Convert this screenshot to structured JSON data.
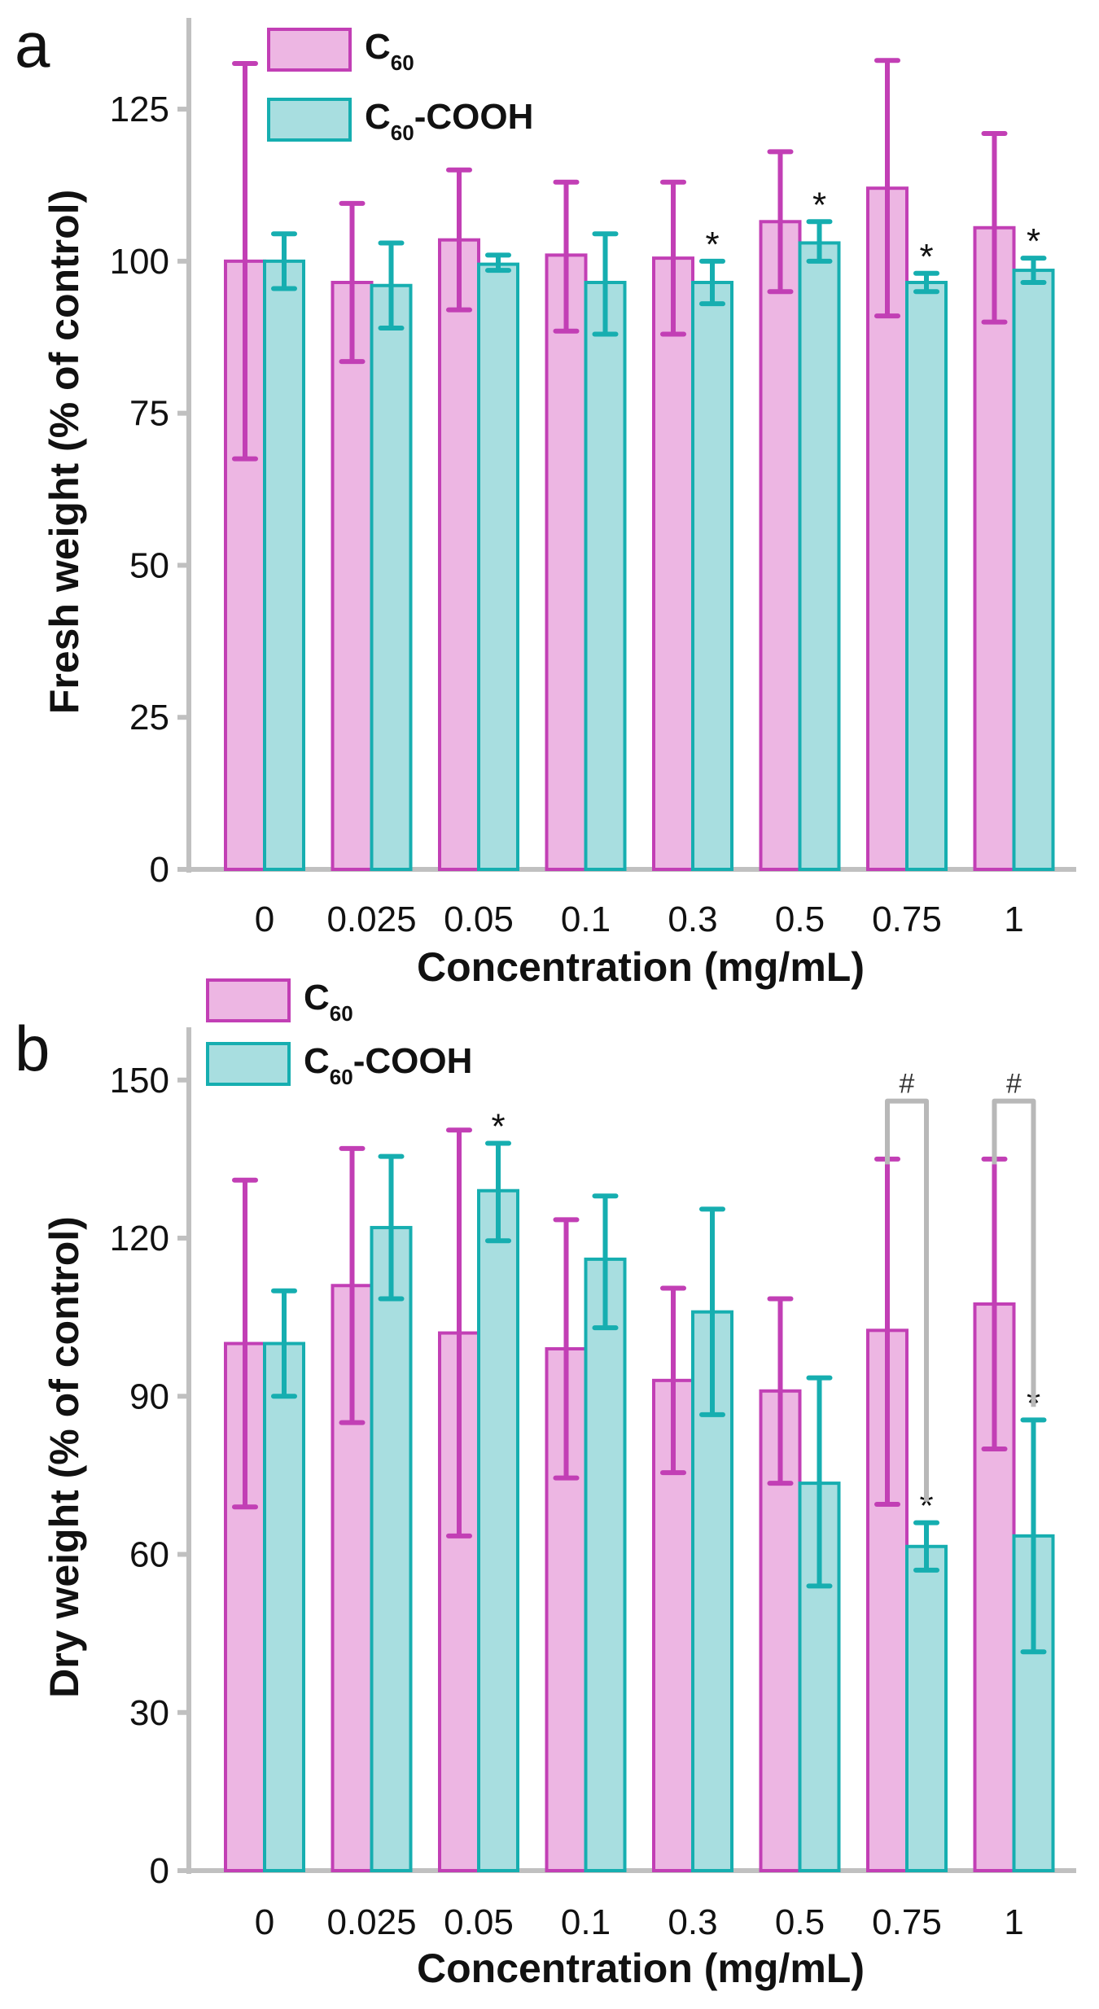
{
  "colors": {
    "c60_fill": "#EDB6E3",
    "c60_stroke": "#C23FB5",
    "cooh_fill": "#A8DEE0",
    "cooh_stroke": "#16AEB0",
    "axis": "#C0C0C0",
    "bracket": "#B8B8B8"
  },
  "chart_data": [
    {
      "panel": "a",
      "type": "bar",
      "xlabel": "Concentration (mg/mL)",
      "ylabel": "Fresh weight (% of control)",
      "ylim": [
        0,
        140
      ],
      "yticks": [
        0,
        25,
        50,
        75,
        100,
        125
      ],
      "categories": [
        "0",
        "0.025",
        "0.05",
        "0.1",
        "0.3",
        "0.5",
        "0.75",
        "1"
      ],
      "legend": [
        {
          "base": "C",
          "sub": "60",
          "suffix": ""
        },
        {
          "base": "C",
          "sub": "60",
          "suffix": "-COOH"
        }
      ],
      "legend_position": "top-left",
      "series": [
        {
          "name": "C60",
          "values": [
            100,
            96.5,
            103.5,
            101,
            100.5,
            106.5,
            112,
            105.5
          ],
          "err_low": [
            67.5,
            83.5,
            92,
            88.5,
            88,
            95,
            91,
            90
          ],
          "err_high": [
            132.5,
            109.5,
            115,
            113,
            113,
            118,
            133,
            121
          ]
        },
        {
          "name": "C60-COOH",
          "values": [
            100,
            96,
            99.5,
            96.5,
            96.5,
            103,
            96.5,
            98.5
          ],
          "err_low": [
            95.5,
            89,
            98.5,
            88,
            93,
            100,
            95,
            96.5
          ],
          "err_high": [
            104.5,
            103,
            101,
            104.5,
            100,
            106.5,
            98,
            100.5
          ],
          "stars": [
            "",
            "",
            "",
            "",
            "*",
            "*",
            "*",
            "*"
          ]
        }
      ],
      "brackets": []
    },
    {
      "panel": "b",
      "type": "bar",
      "xlabel": "Concentration (mg/mL)",
      "ylabel": "Dry weight (% of control)",
      "ylim": [
        0,
        160
      ],
      "yticks": [
        0,
        30,
        60,
        90,
        120,
        150
      ],
      "categories": [
        "0",
        "0.025",
        "0.05",
        "0.1",
        "0.3",
        "0.5",
        "0.75",
        "1"
      ],
      "legend": [
        {
          "base": "C",
          "sub": "60",
          "suffix": ""
        },
        {
          "base": "C",
          "sub": "60",
          "suffix": "-COOH"
        }
      ],
      "legend_position": "top-left",
      "series": [
        {
          "name": "C60",
          "values": [
            100,
            111,
            102,
            99,
            93,
            91,
            102.5,
            107.5
          ],
          "err_low": [
            69,
            85,
            63.5,
            74.5,
            75.5,
            73.5,
            69.5,
            80
          ],
          "err_high": [
            131,
            137,
            140.5,
            123.5,
            110.5,
            108.5,
            135,
            135
          ]
        },
        {
          "name": "C60-COOH",
          "values": [
            100,
            122,
            129,
            116,
            106,
            73.5,
            61.5,
            63.5
          ],
          "err_low": [
            90,
            108.5,
            119.5,
            103,
            86.5,
            54,
            57,
            41.5
          ],
          "err_high": [
            110,
            135.5,
            138,
            128,
            125.5,
            93.5,
            66,
            85.5
          ],
          "stars": [
            "",
            "",
            "*",
            "",
            "",
            "",
            "*",
            "*"
          ]
        }
      ],
      "brackets": [
        {
          "category_index": 6,
          "label": "#",
          "top_value": 146,
          "left_end": 134,
          "right_end": 70
        },
        {
          "category_index": 7,
          "label": "#",
          "top_value": 146,
          "left_end": 134,
          "right_end": 88
        }
      ]
    }
  ]
}
